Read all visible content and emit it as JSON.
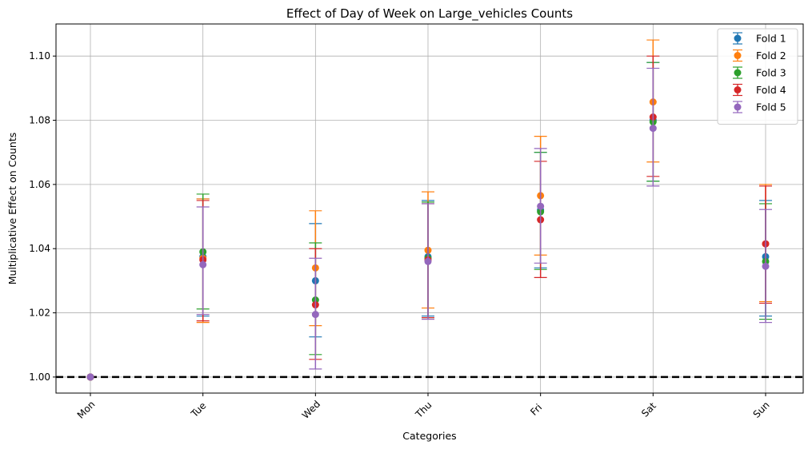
{
  "chart_data": {
    "type": "scatter",
    "title": "Effect of Day of Week on Large_vehicles Counts",
    "xlabel": "Categories",
    "ylabel": "Multiplicative Effect on Counts",
    "categories": [
      "Mon",
      "Tue",
      "Wed",
      "Thu",
      "Fri",
      "Sat",
      "Sun"
    ],
    "ylim": [
      0.995,
      1.11
    ],
    "yticks": [
      "1.00",
      "1.02",
      "1.04",
      "1.06",
      "1.08",
      "1.10"
    ],
    "grid": true,
    "legend_position": "top-right",
    "reference_line": 1.0,
    "series": [
      {
        "name": "Fold 1",
        "color": "#1f77b4",
        "values": [
          1.0,
          1.0375,
          1.03,
          1.0375,
          1.052,
          1.08,
          1.0375
        ],
        "lower": [
          1.0,
          1.019,
          1.0125,
          1.019,
          1.034,
          1.061,
          1.019
        ],
        "upper": [
          1.0,
          1.0555,
          1.0478,
          1.055,
          1.07,
          1.098,
          1.055
        ]
      },
      {
        "name": "Fold 2",
        "color": "#ff7f0e",
        "values": [
          1.0,
          1.037,
          1.034,
          1.0395,
          1.0565,
          1.0857,
          1.0415
        ],
        "lower": [
          1.0,
          1.017,
          1.016,
          1.0215,
          1.038,
          1.067,
          1.0235
        ],
        "upper": [
          1.0,
          1.0555,
          1.0518,
          1.0577,
          1.075,
          1.105,
          1.06
        ]
      },
      {
        "name": "Fold 3",
        "color": "#2ca02c",
        "values": [
          1.0,
          1.039,
          1.024,
          1.037,
          1.0515,
          1.0795,
          1.036
        ],
        "lower": [
          1.0,
          1.0212,
          1.007,
          1.0185,
          1.0335,
          1.061,
          1.018
        ],
        "upper": [
          1.0,
          1.057,
          1.0418,
          1.0545,
          1.07,
          1.098,
          1.054
        ]
      },
      {
        "name": "Fold 4",
        "color": "#d62728",
        "values": [
          1.0,
          1.0365,
          1.0225,
          1.0365,
          1.049,
          1.081,
          1.0415
        ],
        "lower": [
          1.0,
          1.0175,
          1.0055,
          1.0185,
          1.031,
          1.0625,
          1.023
        ],
        "upper": [
          1.0,
          1.055,
          1.04,
          1.054,
          1.0672,
          1.1,
          1.0595
        ]
      },
      {
        "name": "Fold 5",
        "color": "#9467bd",
        "values": [
          1.0,
          1.035,
          1.0195,
          1.036,
          1.0532,
          1.0775,
          1.0345
        ],
        "lower": [
          1.0,
          1.0195,
          1.0025,
          1.018,
          1.0355,
          1.0595,
          1.017
        ],
        "upper": [
          1.0,
          1.053,
          1.037,
          1.054,
          1.0712,
          1.0962,
          1.0522
        ]
      }
    ]
  }
}
